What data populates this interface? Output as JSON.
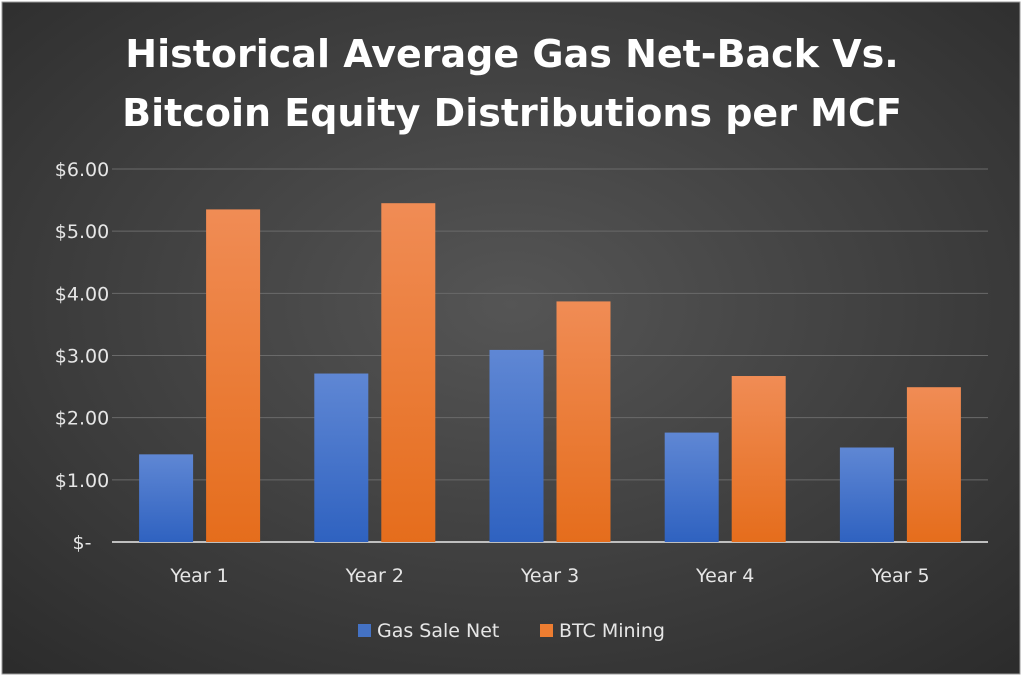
{
  "chart_data": {
    "type": "bar",
    "title": [
      "Historical Average Gas Net-Back Vs.",
      "Bitcoin Equity Distributions per MCF"
    ],
    "xlabel": "",
    "ylabel": "",
    "categories": [
      "Year 1",
      "Year 2",
      "Year 3",
      "Year 4",
      "Year 5"
    ],
    "series": [
      {
        "name": "Gas Sale Net",
        "color": "#4472C4",
        "values": [
          1.41,
          2.71,
          3.09,
          1.76,
          1.52
        ]
      },
      {
        "name": "BTC Mining",
        "color": "#ED7D31",
        "values": [
          5.35,
          5.45,
          3.87,
          2.67,
          2.49
        ]
      }
    ],
    "ylim": [
      0,
      6
    ],
    "yticks": [
      0,
      1,
      2,
      3,
      4,
      5,
      6
    ],
    "ytick_labels": [
      "$-",
      "$1.00",
      "$2.00",
      "$3.00",
      "$4.00",
      "$5.00",
      "$6.00"
    ],
    "grid": true,
    "legend_position": "bottom"
  }
}
